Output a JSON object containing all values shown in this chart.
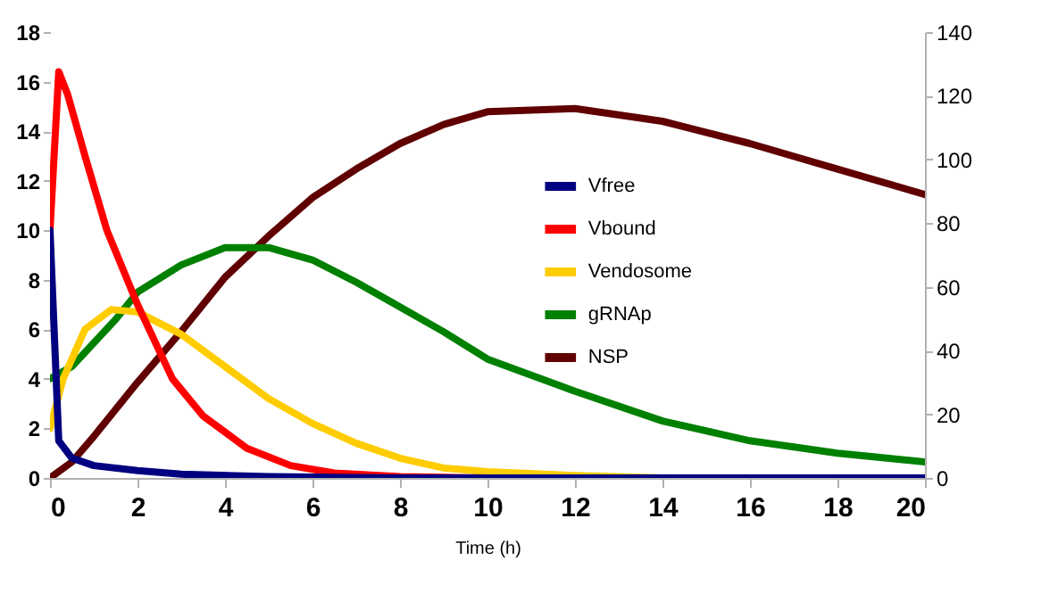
{
  "chart_data": {
    "type": "line",
    "xlabel": "Time (h)",
    "xlim": [
      0,
      20
    ],
    "xticks": [
      0,
      2,
      4,
      6,
      8,
      10,
      12,
      14,
      16,
      18,
      20
    ],
    "ylim": [
      0,
      18
    ],
    "yticks": [
      0,
      2,
      4,
      6,
      8,
      10,
      12,
      14,
      16,
      18
    ],
    "y2lim": [
      0,
      140
    ],
    "y2ticks": [
      0,
      20,
      40,
      60,
      80,
      100,
      120,
      140
    ],
    "grid": false,
    "legend": "right",
    "marker": "none",
    "line_style": "solid",
    "series": [
      {
        "name": "Vfree",
        "color": "#000080",
        "x": [
          0,
          0.2,
          0.5,
          1,
          2,
          3,
          5,
          8,
          20
        ],
        "values": [
          10,
          1.5,
          0.8,
          0.5,
          0.3,
          0.15,
          0.05,
          0,
          0
        ]
      },
      {
        "name": "Vbound",
        "color": "#ff0000",
        "x": [
          0,
          0.2,
          0.4,
          0.8,
          1.3,
          2,
          2.8,
          3.5,
          4.5,
          5.5,
          6.5,
          8,
          10,
          20
        ],
        "values": [
          10,
          16.4,
          15.5,
          13,
          10,
          7,
          4,
          2.5,
          1.2,
          0.5,
          0.2,
          0.05,
          0,
          0
        ]
      },
      {
        "name": "Vendosome",
        "color": "#ffcc00",
        "x": [
          0,
          0.3,
          0.8,
          1.4,
          2,
          3,
          4,
          5,
          6,
          7,
          8,
          9,
          10,
          12,
          14,
          20
        ],
        "values": [
          2,
          4,
          6,
          6.8,
          6.7,
          5.8,
          4.5,
          3.2,
          2.2,
          1.4,
          0.8,
          0.4,
          0.25,
          0.1,
          0,
          0
        ]
      },
      {
        "name": "gRNAp",
        "color": "#008000",
        "x": [
          0,
          0.5,
          1.5,
          2,
          3,
          4,
          5,
          6,
          7,
          8,
          9,
          10,
          12,
          14,
          16,
          18,
          20
        ],
        "values": [
          4,
          4.5,
          6.4,
          7.5,
          8.6,
          9.3,
          9.3,
          8.8,
          7.9,
          6.9,
          5.9,
          4.8,
          3.5,
          2.3,
          1.5,
          1.0,
          0.65
        ]
      },
      {
        "name": "NSP",
        "color": "#600000",
        "axis": "y2",
        "x": [
          0,
          0.5,
          1,
          2,
          3,
          4,
          5,
          6,
          7,
          8,
          9,
          10,
          12,
          14,
          16,
          18,
          20
        ],
        "values": [
          0,
          5,
          13,
          30,
          46,
          63,
          76,
          88,
          97,
          105,
          111,
          115,
          116,
          112,
          105,
          97,
          89
        ]
      }
    ]
  }
}
